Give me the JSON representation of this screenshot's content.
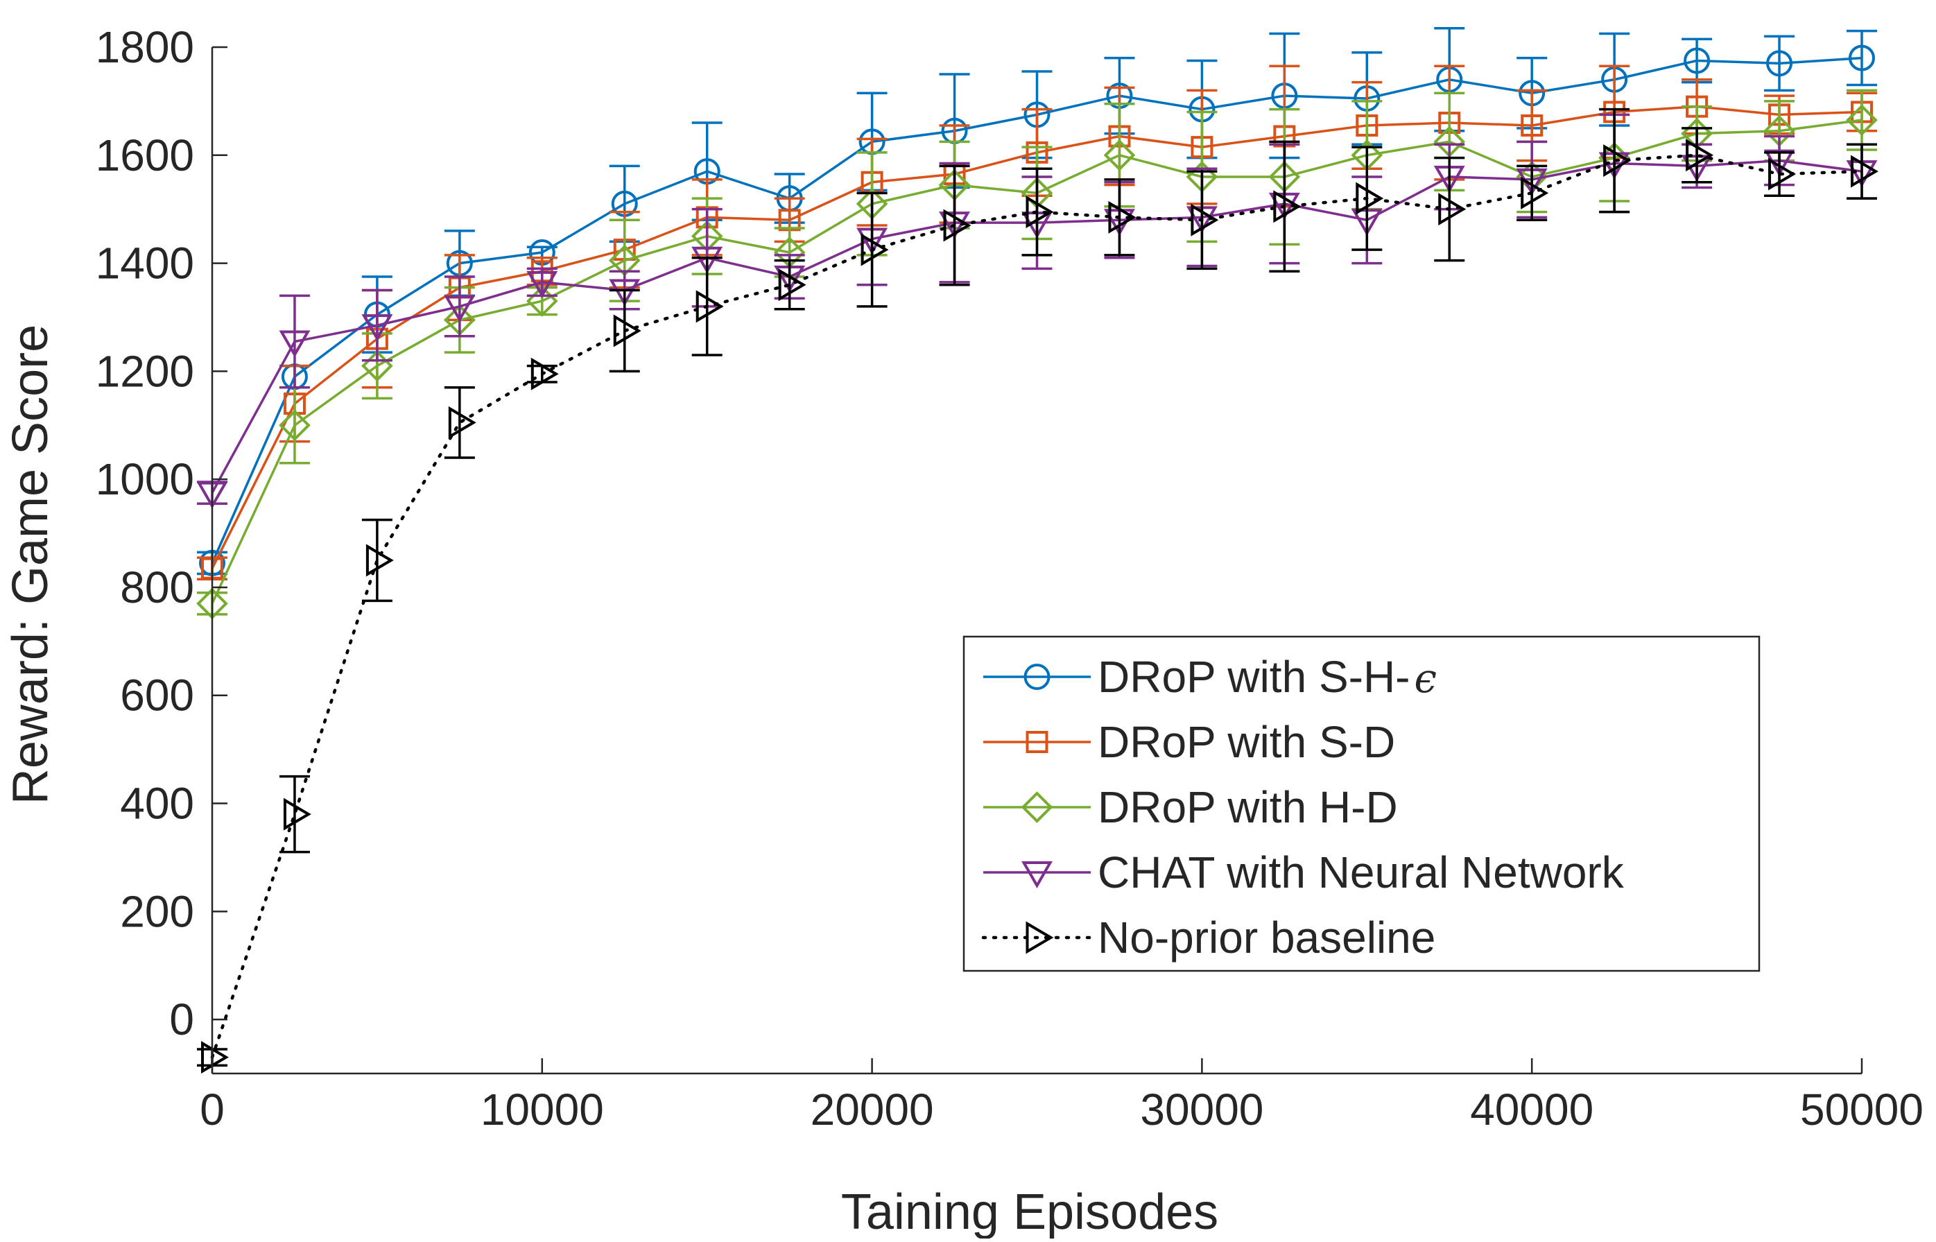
{
  "chart_data": {
    "type": "line",
    "title": "",
    "xlabel": "Taining Episodes",
    "ylabel": "Reward: Game Score",
    "xlim": [
      0,
      50000
    ],
    "ylim": [
      -100,
      1800
    ],
    "xticks": [
      0,
      10000,
      20000,
      30000,
      40000,
      50000
    ],
    "yticks": [
      0,
      200,
      400,
      600,
      800,
      1000,
      1200,
      1400,
      1600,
      1800
    ],
    "grid": false,
    "legend_position": "lower-right",
    "series": [
      {
        "name": "DRoP with S-H-",
        "name_symbol": "ϵ",
        "color": "#0072BD",
        "marker": "circle",
        "line_style": "solid",
        "x": [
          0,
          2500,
          5000,
          7500,
          10000,
          12500,
          15000,
          17500,
          20000,
          22500,
          25000,
          27500,
          30000,
          32500,
          35000,
          37500,
          40000,
          42500,
          45000,
          47500,
          50000
        ],
        "values": [
          845,
          1190,
          1305,
          1400,
          1420,
          1510,
          1570,
          1520,
          1625,
          1645,
          1675,
          1710,
          1685,
          1710,
          1705,
          1740,
          1715,
          1740,
          1775,
          1770,
          1780
        ],
        "error": [
          20,
          20,
          70,
          60,
          10,
          70,
          90,
          45,
          90,
          105,
          80,
          70,
          90,
          115,
          85,
          95,
          65,
          85,
          40,
          50,
          50
        ]
      },
      {
        "name": "DRoP with S-D",
        "color": "#D95319",
        "marker": "square",
        "line_style": "solid",
        "x": [
          0,
          2500,
          5000,
          7500,
          10000,
          12500,
          15000,
          17500,
          20000,
          22500,
          25000,
          27500,
          30000,
          32500,
          35000,
          37500,
          40000,
          42500,
          45000,
          47500,
          50000
        ],
        "values": [
          835,
          1140,
          1260,
          1355,
          1385,
          1425,
          1485,
          1480,
          1550,
          1565,
          1605,
          1635,
          1615,
          1635,
          1655,
          1660,
          1655,
          1680,
          1690,
          1675,
          1680
        ],
        "error": [
          20,
          70,
          90,
          60,
          25,
          70,
          70,
          40,
          80,
          90,
          80,
          90,
          105,
          130,
          80,
          105,
          65,
          85,
          50,
          35,
          35
        ]
      },
      {
        "name": "DRoP with H-D",
        "color": "#77AC30",
        "marker": "diamond",
        "line_style": "solid",
        "x": [
          0,
          2500,
          5000,
          7500,
          10000,
          12500,
          15000,
          17500,
          20000,
          22500,
          25000,
          27500,
          30000,
          32500,
          35000,
          37500,
          40000,
          42500,
          45000,
          47500,
          50000
        ],
        "values": [
          770,
          1100,
          1210,
          1295,
          1330,
          1405,
          1450,
          1420,
          1510,
          1545,
          1530,
          1600,
          1560,
          1560,
          1600,
          1625,
          1560,
          1595,
          1640,
          1645,
          1665
        ],
        "error": [
          20,
          70,
          60,
          60,
          25,
          75,
          70,
          45,
          95,
          80,
          85,
          95,
          120,
          125,
          100,
          90,
          65,
          80,
          50,
          55,
          55
        ]
      },
      {
        "name": "CHAT with Neural Network",
        "color": "#7E2F8E",
        "marker": "triangle-down",
        "line_style": "solid",
        "x": [
          0,
          2500,
          5000,
          7500,
          10000,
          12500,
          15000,
          17500,
          20000,
          22500,
          25000,
          27500,
          30000,
          32500,
          35000,
          37500,
          40000,
          42500,
          45000,
          47500,
          50000
        ],
        "values": [
          975,
          1255,
          1285,
          1320,
          1365,
          1350,
          1410,
          1375,
          1445,
          1475,
          1475,
          1480,
          1485,
          1510,
          1480,
          1560,
          1555,
          1585,
          1580,
          1590,
          1570
        ],
        "error": [
          20,
          85,
          65,
          55,
          25,
          35,
          90,
          40,
          85,
          110,
          85,
          70,
          90,
          110,
          80,
          60,
          70,
          90,
          40,
          45,
          50
        ]
      },
      {
        "name": "No-prior baseline",
        "color": "#000000",
        "marker": "triangle-right",
        "line_style": "dotted",
        "x": [
          0,
          2500,
          5000,
          7500,
          10000,
          12500,
          15000,
          17500,
          20000,
          22500,
          25000,
          27500,
          30000,
          32500,
          35000,
          37500,
          40000,
          42500,
          45000,
          47500,
          50000
        ],
        "values": [
          -70,
          380,
          850,
          1105,
          1195,
          1275,
          1320,
          1360,
          1425,
          1470,
          1495,
          1485,
          1480,
          1505,
          1520,
          1500,
          1530,
          1590,
          1600,
          1565,
          1570
        ],
        "error": [
          15,
          70,
          75,
          65,
          15,
          75,
          90,
          45,
          105,
          110,
          80,
          70,
          90,
          120,
          95,
          95,
          50,
          95,
          50,
          40,
          50
        ]
      }
    ]
  }
}
